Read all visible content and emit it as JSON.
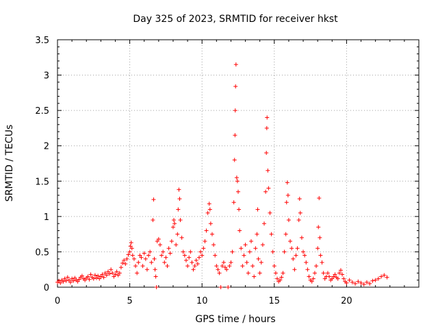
{
  "chart_data": {
    "type": "scatter",
    "title": "Day 325 of 2023, SRMTID for receiver hkst",
    "xlabel": "GPS time / hours",
    "ylabel": "SRMTID / TECUs",
    "xlim": [
      0,
      25
    ],
    "ylim": [
      0,
      3.5
    ],
    "xticks": [
      0,
      5,
      10,
      15,
      20
    ],
    "yticks": [
      0,
      0.5,
      1,
      1.5,
      2,
      2.5,
      3,
      3.5
    ],
    "xtick_labels": [
      "0",
      "5",
      "10",
      "15",
      "20"
    ],
    "ytick_labels": [
      "0",
      "0.5",
      "1",
      "1.5",
      "2",
      "2.5",
      "3",
      "3.5"
    ],
    "grid": true,
    "marker": "+",
    "color": "#ff0000",
    "series": [
      {
        "name": "SRMTID",
        "points": [
          [
            0.0,
            0.07
          ],
          [
            0.1,
            0.09
          ],
          [
            0.2,
            0.06
          ],
          [
            0.3,
            0.1
          ],
          [
            0.4,
            0.08
          ],
          [
            0.5,
            0.12
          ],
          [
            0.6,
            0.09
          ],
          [
            0.7,
            0.14
          ],
          [
            0.8,
            0.1
          ],
          [
            0.9,
            0.07
          ],
          [
            1.0,
            0.12
          ],
          [
            1.1,
            0.09
          ],
          [
            1.2,
            0.13
          ],
          [
            1.3,
            0.1
          ],
          [
            1.4,
            0.08
          ],
          [
            1.5,
            0.11
          ],
          [
            1.6,
            0.14
          ],
          [
            1.7,
            0.16
          ],
          [
            1.8,
            0.12
          ],
          [
            1.9,
            0.1
          ],
          [
            2.0,
            0.13
          ],
          [
            2.1,
            0.15
          ],
          [
            2.2,
            0.11
          ],
          [
            2.3,
            0.18
          ],
          [
            2.4,
            0.14
          ],
          [
            2.5,
            0.12
          ],
          [
            2.6,
            0.17
          ],
          [
            2.7,
            0.13
          ],
          [
            2.8,
            0.16
          ],
          [
            2.9,
            0.12
          ],
          [
            3.0,
            0.15
          ],
          [
            3.1,
            0.18
          ],
          [
            3.2,
            0.14
          ],
          [
            3.3,
            0.2
          ],
          [
            3.4,
            0.17
          ],
          [
            3.5,
            0.22
          ],
          [
            3.6,
            0.19
          ],
          [
            3.7,
            0.25
          ],
          [
            3.8,
            0.2
          ],
          [
            3.9,
            0.15
          ],
          [
            4.0,
            0.18
          ],
          [
            4.1,
            0.22
          ],
          [
            4.2,
            0.17
          ],
          [
            4.3,
            0.2
          ],
          [
            4.4,
            0.28
          ],
          [
            4.5,
            0.34
          ],
          [
            4.6,
            0.38
          ],
          [
            4.7,
            0.33
          ],
          [
            4.8,
            0.4
          ],
          [
            4.9,
            0.46
          ],
          [
            5.0,
            0.5
          ],
          [
            5.05,
            0.58
          ],
          [
            5.1,
            0.63
          ],
          [
            5.15,
            0.55
          ],
          [
            5.2,
            0.45
          ],
          [
            5.3,
            0.4
          ],
          [
            5.4,
            0.3
          ],
          [
            5.5,
            0.2
          ],
          [
            5.6,
            0.35
          ],
          [
            5.7,
            0.45
          ],
          [
            5.8,
            0.42
          ],
          [
            5.9,
            0.3
          ],
          [
            6.0,
            0.48
          ],
          [
            6.1,
            0.4
          ],
          [
            6.2,
            0.25
          ],
          [
            6.3,
            0.45
          ],
          [
            6.4,
            0.5
          ],
          [
            6.5,
            0.35
          ],
          [
            6.6,
            0.95
          ],
          [
            6.65,
            1.24
          ],
          [
            6.7,
            0.4
          ],
          [
            6.75,
            0.25
          ],
          [
            6.8,
            0.15
          ],
          [
            6.85,
            0.0
          ],
          [
            6.9,
            0.65
          ],
          [
            7.0,
            0.68
          ],
          [
            7.1,
            0.6
          ],
          [
            7.2,
            0.45
          ],
          [
            7.3,
            0.5
          ],
          [
            7.4,
            0.35
          ],
          [
            7.5,
            0.42
          ],
          [
            7.6,
            0.3
          ],
          [
            7.7,
            0.55
          ],
          [
            7.8,
            0.48
          ],
          [
            7.9,
            0.65
          ],
          [
            8.0,
            0.85
          ],
          [
            8.05,
            0.95
          ],
          [
            8.1,
            0.9
          ],
          [
            8.2,
            0.6
          ],
          [
            8.3,
            0.75
          ],
          [
            8.35,
            1.1
          ],
          [
            8.4,
            1.38
          ],
          [
            8.45,
            1.25
          ],
          [
            8.5,
            0.95
          ],
          [
            8.6,
            0.7
          ],
          [
            8.7,
            0.5
          ],
          [
            8.8,
            0.45
          ],
          [
            8.9,
            0.38
          ],
          [
            9.0,
            0.3
          ],
          [
            9.1,
            0.42
          ],
          [
            9.2,
            0.5
          ],
          [
            9.3,
            0.35
          ],
          [
            9.4,
            0.25
          ],
          [
            9.5,
            0.3
          ],
          [
            9.6,
            0.38
          ],
          [
            9.7,
            0.33
          ],
          [
            9.8,
            0.42
          ],
          [
            9.9,
            0.5
          ],
          [
            10.0,
            0.45
          ],
          [
            10.1,
            0.55
          ],
          [
            10.2,
            0.65
          ],
          [
            10.3,
            0.8
          ],
          [
            10.4,
            1.05
          ],
          [
            10.5,
            1.18
          ],
          [
            10.55,
            1.1
          ],
          [
            10.6,
            0.9
          ],
          [
            10.7,
            0.75
          ],
          [
            10.8,
            0.6
          ],
          [
            10.9,
            0.45
          ],
          [
            11.0,
            0.3
          ],
          [
            11.1,
            0.25
          ],
          [
            11.2,
            0.2
          ],
          [
            11.3,
            0.0
          ],
          [
            11.4,
            0.3
          ],
          [
            11.5,
            0.35
          ],
          [
            11.6,
            0.28
          ],
          [
            11.7,
            0.25
          ],
          [
            11.8,
            0.0
          ],
          [
            11.9,
            0.3
          ],
          [
            12.0,
            0.35
          ],
          [
            12.1,
            0.5
          ],
          [
            12.2,
            1.2
          ],
          [
            12.25,
            1.8
          ],
          [
            12.28,
            2.15
          ],
          [
            12.3,
            2.5
          ],
          [
            12.32,
            2.84
          ],
          [
            12.35,
            3.15
          ],
          [
            12.4,
            1.55
          ],
          [
            12.45,
            1.5
          ],
          [
            12.5,
            1.35
          ],
          [
            12.55,
            1.1
          ],
          [
            12.6,
            0.8
          ],
          [
            12.7,
            0.55
          ],
          [
            12.8,
            0.3
          ],
          [
            12.9,
            0.45
          ],
          [
            13.0,
            0.6
          ],
          [
            13.1,
            0.35
          ],
          [
            13.2,
            0.2
          ],
          [
            13.3,
            0.5
          ],
          [
            13.4,
            0.65
          ],
          [
            13.5,
            0.3
          ],
          [
            13.6,
            0.15
          ],
          [
            13.7,
            0.55
          ],
          [
            13.8,
            0.75
          ],
          [
            13.85,
            1.1
          ],
          [
            13.9,
            0.4
          ],
          [
            14.0,
            0.2
          ],
          [
            14.1,
            0.35
          ],
          [
            14.2,
            0.6
          ],
          [
            14.3,
            0.9
          ],
          [
            14.4,
            1.35
          ],
          [
            14.45,
            1.9
          ],
          [
            14.48,
            2.25
          ],
          [
            14.5,
            2.4
          ],
          [
            14.55,
            1.65
          ],
          [
            14.6,
            1.4
          ],
          [
            14.7,
            1.05
          ],
          [
            14.8,
            0.75
          ],
          [
            14.9,
            0.5
          ],
          [
            15.0,
            0.3
          ],
          [
            15.1,
            0.2
          ],
          [
            15.2,
            0.12
          ],
          [
            15.3,
            0.08
          ],
          [
            15.4,
            0.1
          ],
          [
            15.5,
            0.14
          ],
          [
            15.6,
            0.2
          ],
          [
            15.7,
            0.5
          ],
          [
            15.8,
            0.75
          ],
          [
            15.85,
            1.2
          ],
          [
            15.9,
            1.48
          ],
          [
            15.95,
            1.3
          ],
          [
            16.0,
            0.95
          ],
          [
            16.1,
            0.65
          ],
          [
            16.2,
            0.55
          ],
          [
            16.3,
            0.4
          ],
          [
            16.4,
            0.25
          ],
          [
            16.5,
            0.45
          ],
          [
            16.6,
            0.55
          ],
          [
            16.7,
            0.95
          ],
          [
            16.75,
            1.25
          ],
          [
            16.8,
            1.05
          ],
          [
            16.9,
            0.7
          ],
          [
            17.0,
            0.5
          ],
          [
            17.1,
            0.45
          ],
          [
            17.2,
            0.35
          ],
          [
            17.3,
            0.25
          ],
          [
            17.4,
            0.15
          ],
          [
            17.5,
            0.1
          ],
          [
            17.6,
            0.08
          ],
          [
            17.7,
            0.12
          ],
          [
            17.8,
            0.2
          ],
          [
            17.9,
            0.3
          ],
          [
            18.0,
            0.55
          ],
          [
            18.05,
            0.85
          ],
          [
            18.1,
            1.26
          ],
          [
            18.15,
            0.7
          ],
          [
            18.2,
            0.45
          ],
          [
            18.3,
            0.35
          ],
          [
            18.4,
            0.2
          ],
          [
            18.5,
            0.12
          ],
          [
            18.6,
            0.15
          ],
          [
            18.7,
            0.2
          ],
          [
            18.8,
            0.15
          ],
          [
            18.9,
            0.1
          ],
          [
            19.0,
            0.12
          ],
          [
            19.1,
            0.15
          ],
          [
            19.2,
            0.18
          ],
          [
            19.3,
            0.14
          ],
          [
            19.4,
            0.12
          ],
          [
            19.5,
            0.2
          ],
          [
            19.6,
            0.24
          ],
          [
            19.7,
            0.18
          ],
          [
            19.8,
            0.12
          ],
          [
            19.9,
            0.08
          ],
          [
            20.0,
            0.06
          ],
          [
            20.2,
            0.1
          ],
          [
            20.4,
            0.07
          ],
          [
            20.6,
            0.05
          ],
          [
            20.8,
            0.08
          ],
          [
            21.0,
            0.06
          ],
          [
            21.2,
            0.04
          ],
          [
            21.4,
            0.07
          ],
          [
            21.6,
            0.05
          ],
          [
            21.8,
            0.09
          ],
          [
            22.0,
            0.1
          ],
          [
            22.2,
            0.12
          ],
          [
            22.4,
            0.15
          ],
          [
            22.6,
            0.17
          ],
          [
            22.8,
            0.14
          ]
        ]
      }
    ]
  }
}
